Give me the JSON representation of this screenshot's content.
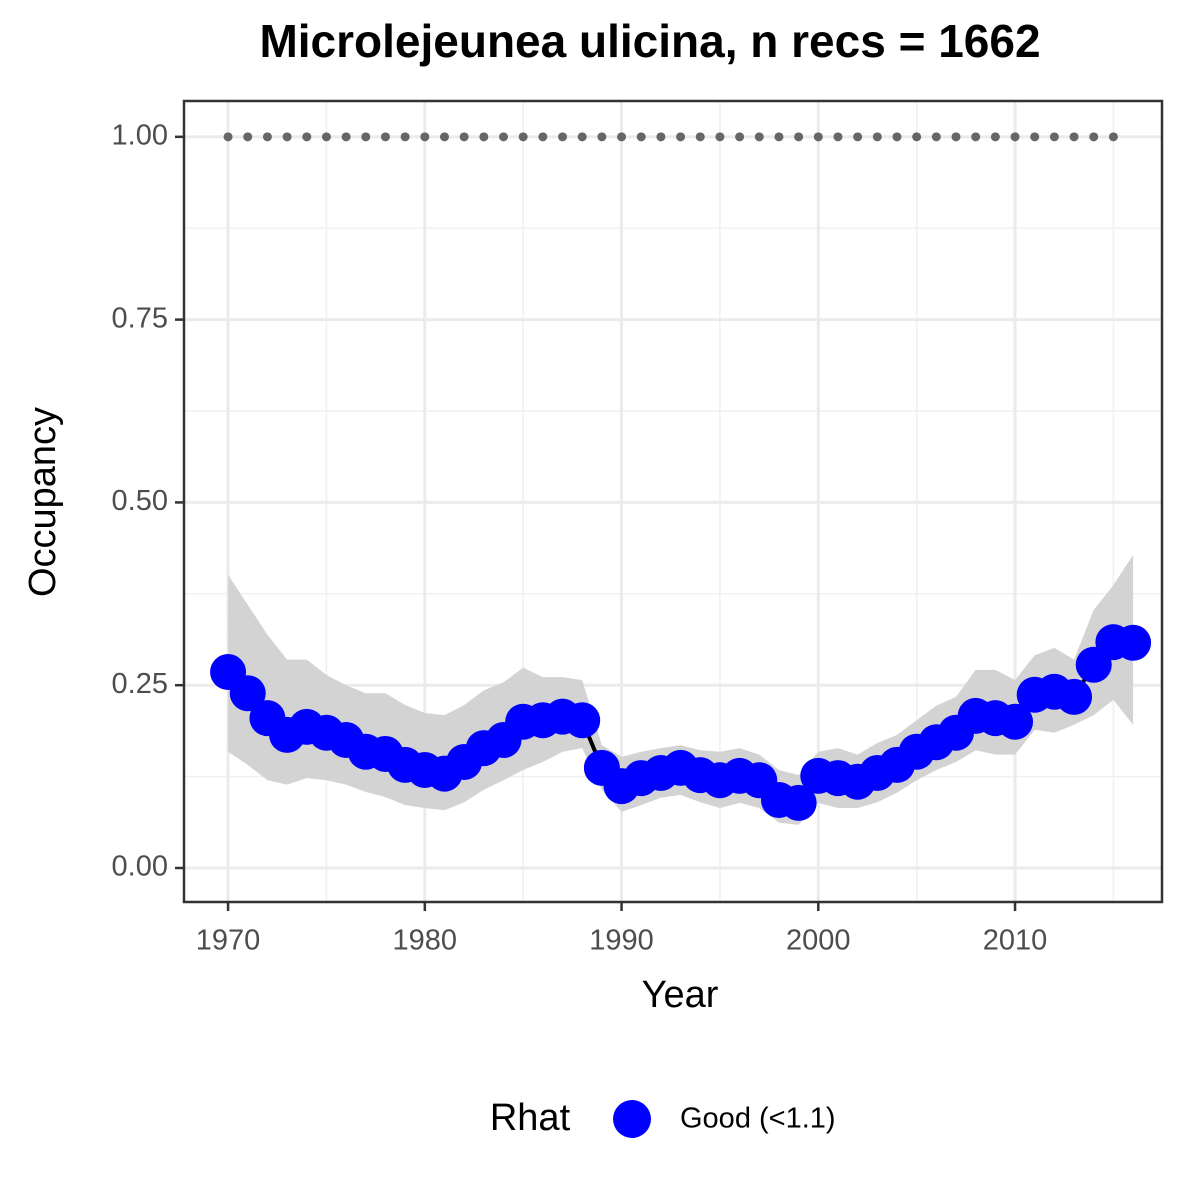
{
  "chart_data": {
    "type": "line",
    "title": "Microlejeunea ulicina, n recs = 1662",
    "x_label": "Year",
    "y_label": "Occupancy",
    "xlim": [
      1967.76,
      2017.47
    ],
    "ylim": [
      -0.0465,
      1.049
    ],
    "xticks": [
      1970,
      1980,
      1990,
      2000,
      2010
    ],
    "yticks": [
      {
        "value": 0,
        "label": "0.00"
      },
      {
        "value": 0.25,
        "label": "0.25"
      },
      {
        "value": 0.5,
        "label": "0.50"
      },
      {
        "value": 0.75,
        "label": "0.75"
      },
      {
        "value": 1,
        "label": "1.00"
      }
    ],
    "minor_xticks": [
      1975,
      1985,
      1995,
      2005,
      2015
    ],
    "minor_yticks": [
      0.125,
      0.375,
      0.625,
      0.875
    ],
    "grid": true,
    "legend_title": "Rhat",
    "legend_position": "bottom",
    "x": [
      1970,
      1971,
      1972,
      1973,
      1974,
      1975,
      1976,
      1977,
      1978,
      1979,
      1980,
      1981,
      1982,
      1983,
      1984,
      1985,
      1986,
      1987,
      1988,
      1989,
      1990,
      1991,
      1992,
      1993,
      1994,
      1995,
      1996,
      1997,
      1998,
      1999,
      2000,
      2001,
      2002,
      2003,
      2004,
      2005,
      2006,
      2007,
      2008,
      2009,
      2010,
      2011,
      2012,
      2013,
      2014,
      2015,
      2016
    ],
    "series": [
      {
        "name": "Good (<1.1)",
        "color": "#0000ff",
        "line_color": "#000000",
        "band_color": "#d3d3d3",
        "values": [
          0.268,
          0.239,
          0.205,
          0.182,
          0.193,
          0.185,
          0.175,
          0.159,
          0.156,
          0.141,
          0.134,
          0.129,
          0.145,
          0.164,
          0.175,
          0.2,
          0.202,
          0.207,
          0.202,
          0.137,
          0.112,
          0.123,
          0.13,
          0.137,
          0.127,
          0.12,
          0.126,
          0.12,
          0.093,
          0.089,
          0.126,
          0.123,
          0.118,
          0.13,
          0.141,
          0.159,
          0.172,
          0.185,
          0.208,
          0.205,
          0.2,
          0.237,
          0.241,
          0.234,
          0.278,
          0.309,
          0.308
        ],
        "upper": [
          0.401,
          0.36,
          0.319,
          0.285,
          0.285,
          0.264,
          0.25,
          0.239,
          0.239,
          0.223,
          0.212,
          0.209,
          0.223,
          0.243,
          0.254,
          0.274,
          0.261,
          0.261,
          0.257,
          0.168,
          0.152,
          0.159,
          0.164,
          0.168,
          0.161,
          0.159,
          0.164,
          0.155,
          0.134,
          0.127,
          0.159,
          0.164,
          0.155,
          0.171,
          0.182,
          0.202,
          0.222,
          0.234,
          0.271,
          0.271,
          0.257,
          0.291,
          0.301,
          0.285,
          0.353,
          0.387,
          0.428
        ],
        "lower": [
          0.159,
          0.141,
          0.12,
          0.114,
          0.123,
          0.12,
          0.114,
          0.104,
          0.097,
          0.086,
          0.082,
          0.079,
          0.09,
          0.107,
          0.12,
          0.134,
          0.145,
          0.159,
          0.164,
          0.107,
          0.077,
          0.086,
          0.096,
          0.1,
          0.09,
          0.082,
          0.089,
          0.082,
          0.062,
          0.059,
          0.089,
          0.082,
          0.082,
          0.09,
          0.103,
          0.12,
          0.134,
          0.145,
          0.161,
          0.155,
          0.155,
          0.189,
          0.185,
          0.196,
          0.209,
          0.23,
          0.196
        ]
      }
    ],
    "reference": {
      "color": "#666666",
      "x": [
        1970,
        1971,
        1972,
        1973,
        1974,
        1975,
        1976,
        1977,
        1978,
        1979,
        1980,
        1981,
        1982,
        1983,
        1984,
        1985,
        1986,
        1987,
        1988,
        1989,
        1990,
        1991,
        1992,
        1993,
        1994,
        1995,
        1996,
        1997,
        1998,
        1999,
        2000,
        2001,
        2002,
        2003,
        2004,
        2005,
        2006,
        2007,
        2008,
        2009,
        2010,
        2011,
        2012,
        2013,
        2014,
        2015
      ],
      "values": [
        1,
        1,
        1,
        1,
        1,
        1,
        1,
        1,
        1,
        1,
        1,
        1,
        1,
        1,
        1,
        1,
        1,
        1,
        1,
        1,
        1,
        1,
        1,
        1,
        1,
        1,
        1,
        1,
        1,
        1,
        1,
        1,
        1,
        1,
        1,
        1,
        1,
        1,
        1,
        1,
        1,
        1,
        1,
        1,
        1,
        1
      ]
    }
  }
}
